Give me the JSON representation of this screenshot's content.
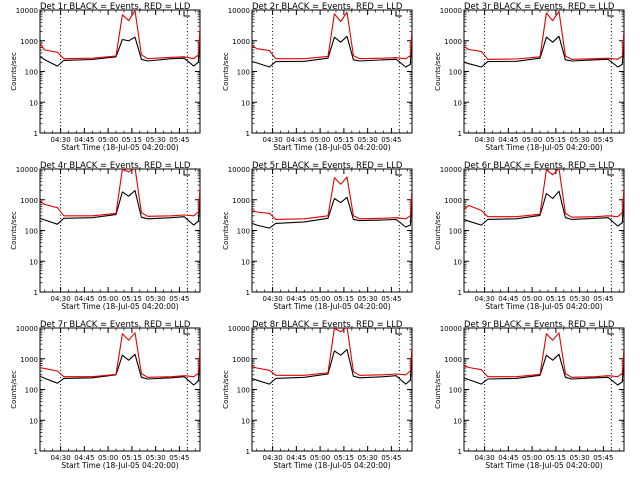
{
  "chart_data": [
    {
      "type": "line",
      "title": "Det 1r BLACK = Events, RED = LLD",
      "xlabel": "Start Time (18-Jul-05 04:20:00)",
      "ylabel": "Counts/sec",
      "ylim": [
        1,
        10000
      ],
      "y_scale": "log",
      "x_ticks": [
        "04:30",
        "04:45",
        "05:00",
        "05:15",
        "05:30",
        "05:45"
      ],
      "y_ticks": [
        "1",
        "10",
        "100",
        "1000",
        "10000"
      ],
      "grid": false,
      "vertical_markers": [
        "04:30",
        "05:50"
      ],
      "x_range": [
        "04:17",
        "05:58"
      ],
      "series": [
        {
          "color": "#000000",
          "x": [
            "04:17",
            "04:20",
            "04:28",
            "04:32",
            "04:50",
            "05:05",
            "05:09",
            "05:13",
            "05:17",
            "05:21",
            "05:25",
            "05:40",
            "05:48",
            "05:54",
            "05:57",
            "05:58"
          ],
          "values": [
            310,
            240,
            150,
            230,
            245,
            300,
            1100,
            1000,
            1300,
            250,
            220,
            260,
            270,
            150,
            200,
            2000
          ]
        },
        {
          "color": "#e00000",
          "x": [
            "04:17",
            "04:20",
            "04:28",
            "04:32",
            "04:50",
            "05:05",
            "05:09",
            "05:13",
            "05:17",
            "05:21",
            "05:25",
            "05:40",
            "05:48",
            "05:54",
            "05:57",
            "05:58"
          ],
          "values": [
            800,
            500,
            420,
            260,
            270,
            320,
            7000,
            4500,
            9500,
            350,
            260,
            290,
            300,
            260,
            350,
            2700
          ]
        }
      ]
    },
    {
      "type": "line",
      "title": "Det 2r BLACK = Events, RED = LLD",
      "xlabel": "Start Time (18-Jul-05 04:20:00)",
      "ylabel": "Counts/sec",
      "ylim": [
        1,
        10000
      ],
      "y_scale": "log",
      "x_ticks": [
        "04:30",
        "04:45",
        "05:00",
        "05:15",
        "05:30",
        "05:45"
      ],
      "y_ticks": [
        "1",
        "10",
        "100",
        "1000",
        "10000"
      ],
      "grid": false,
      "vertical_markers": [
        "04:30",
        "05:50"
      ],
      "x_range": [
        "04:17",
        "05:58"
      ],
      "series": [
        {
          "color": "#000000",
          "x": [
            "04:17",
            "04:20",
            "04:28",
            "04:32",
            "04:50",
            "05:05",
            "05:09",
            "05:13",
            "05:17",
            "05:21",
            "05:25",
            "05:40",
            "05:48",
            "05:54",
            "05:57",
            "05:58"
          ],
          "values": [
            210,
            190,
            140,
            210,
            215,
            270,
            1300,
            900,
            1400,
            240,
            220,
            240,
            250,
            140,
            170,
            1800
          ]
        },
        {
          "color": "#e00000",
          "x": [
            "04:17",
            "04:20",
            "04:28",
            "04:32",
            "04:50",
            "05:05",
            "05:09",
            "05:13",
            "05:17",
            "05:21",
            "05:25",
            "05:40",
            "05:48",
            "05:54",
            "05:57",
            "05:58"
          ],
          "values": [
            700,
            550,
            480,
            260,
            260,
            310,
            7500,
            4200,
            8500,
            330,
            260,
            270,
            280,
            260,
            330,
            2300
          ]
        }
      ]
    },
    {
      "type": "line",
      "title": "Det 3r BLACK = Events, RED = LLD",
      "xlabel": "Start Time (18-Jul-05 04:20:00)",
      "ylabel": "Counts/sec",
      "ylim": [
        1,
        10000
      ],
      "y_scale": "log",
      "x_ticks": [
        "04:30",
        "04:45",
        "05:00",
        "05:15",
        "05:30",
        "05:45"
      ],
      "y_ticks": [
        "1",
        "10",
        "100",
        "1000",
        "10000"
      ],
      "grid": false,
      "vertical_markers": [
        "04:30",
        "05:50"
      ],
      "x_range": [
        "04:17",
        "05:58"
      ],
      "series": [
        {
          "color": "#000000",
          "x": [
            "04:17",
            "04:20",
            "04:28",
            "04:32",
            "04:50",
            "05:05",
            "05:09",
            "05:13",
            "05:17",
            "05:21",
            "05:25",
            "05:40",
            "05:48",
            "05:54",
            "05:57",
            "05:58"
          ],
          "values": [
            200,
            180,
            140,
            210,
            215,
            270,
            1300,
            900,
            1400,
            240,
            220,
            240,
            250,
            140,
            170,
            1900
          ]
        },
        {
          "color": "#e00000",
          "x": [
            "04:17",
            "04:20",
            "04:28",
            "04:32",
            "04:50",
            "05:05",
            "05:09",
            "05:13",
            "05:17",
            "05:21",
            "05:25",
            "05:40",
            "05:48",
            "05:54",
            "05:57",
            "05:58"
          ],
          "values": [
            650,
            520,
            450,
            250,
            255,
            300,
            8000,
            4500,
            9000,
            320,
            250,
            260,
            270,
            250,
            320,
            2200
          ]
        }
      ]
    },
    {
      "type": "line",
      "title": "Det 4r BLACK = Events, RED = LLD",
      "xlabel": "Start Time (18-Jul-05 04:20:00)",
      "ylabel": "Counts/sec",
      "ylim": [
        1,
        10000
      ],
      "y_scale": "log",
      "x_ticks": [
        "04:30",
        "04:45",
        "05:00",
        "05:15",
        "05:30",
        "05:45"
      ],
      "y_ticks": [
        "1",
        "10",
        "100",
        "1000",
        "10000"
      ],
      "grid": false,
      "vertical_markers": [
        "04:30",
        "05:50"
      ],
      "x_range": [
        "04:17",
        "05:58"
      ],
      "series": [
        {
          "color": "#000000",
          "x": [
            "04:17",
            "04:20",
            "04:28",
            "04:32",
            "04:50",
            "05:05",
            "05:09",
            "05:13",
            "05:17",
            "05:21",
            "05:25",
            "05:40",
            "05:48",
            "05:54",
            "05:57",
            "05:58"
          ],
          "values": [
            250,
            220,
            160,
            250,
            260,
            330,
            1800,
            1300,
            2000,
            270,
            240,
            260,
            280,
            150,
            200,
            2000
          ]
        },
        {
          "color": "#e00000",
          "x": [
            "04:17",
            "04:20",
            "04:28",
            "04:32",
            "04:50",
            "05:05",
            "05:09",
            "05:13",
            "05:17",
            "05:21",
            "05:25",
            "05:40",
            "05:48",
            "05:54",
            "05:57",
            "05:58"
          ],
          "values": [
            900,
            700,
            550,
            300,
            300,
            360,
            10000,
            8000,
            11000,
            380,
            290,
            300,
            320,
            300,
            400,
            2500
          ]
        }
      ]
    },
    {
      "type": "line",
      "title": "Det 5r BLACK = Events, RED = LLD",
      "xlabel": "Start Time (18-Jul-05 04:20:00)",
      "ylabel": "Counts/sec",
      "ylim": [
        1,
        10000
      ],
      "y_scale": "log",
      "x_ticks": [
        "04:30",
        "04:45",
        "05:00",
        "05:15",
        "05:30",
        "05:45"
      ],
      "y_ticks": [
        "1",
        "10",
        "100",
        "1000",
        "10000"
      ],
      "grid": false,
      "vertical_markers": [
        "04:30",
        "05:50"
      ],
      "x_range": [
        "04:17",
        "05:58"
      ],
      "series": [
        {
          "color": "#000000",
          "x": [
            "04:17",
            "04:20",
            "04:28",
            "04:32",
            "04:50",
            "05:05",
            "05:09",
            "05:13",
            "05:17",
            "05:21",
            "05:25",
            "05:40",
            "05:48",
            "05:54",
            "05:57",
            "05:58"
          ],
          "values": [
            170,
            150,
            120,
            170,
            190,
            250,
            1100,
            800,
            1200,
            230,
            210,
            220,
            230,
            130,
            150,
            1800
          ]
        },
        {
          "color": "#e00000",
          "x": [
            "04:17",
            "04:20",
            "04:28",
            "04:32",
            "04:50",
            "05:05",
            "05:09",
            "05:13",
            "05:17",
            "05:21",
            "05:25",
            "05:40",
            "05:48",
            "05:54",
            "05:57",
            "05:58"
          ],
          "values": [
            450,
            400,
            360,
            230,
            240,
            300,
            5200,
            3200,
            5500,
            300,
            240,
            250,
            260,
            240,
            300,
            2000
          ]
        }
      ]
    },
    {
      "type": "line",
      "title": "Det 6r BLACK = Events, RED = LLD",
      "xlabel": "Start Time (18-Jul-05 04:20:00)",
      "ylabel": "Counts/sec",
      "ylim": [
        1,
        10000
      ],
      "y_scale": "log",
      "x_ticks": [
        "04:30",
        "04:45",
        "05:00",
        "05:15",
        "05:30",
        "05:45"
      ],
      "y_ticks": [
        "1",
        "10",
        "100",
        "1000",
        "10000"
      ],
      "grid": false,
      "vertical_markers": [
        "04:30",
        "05:50"
      ],
      "x_range": [
        "04:17",
        "05:58"
      ],
      "series": [
        {
          "color": "#000000",
          "x": [
            "04:17",
            "04:20",
            "04:28",
            "04:32",
            "04:50",
            "05:05",
            "05:09",
            "05:13",
            "05:17",
            "05:21",
            "05:25",
            "05:40",
            "05:48",
            "05:54",
            "05:57",
            "05:58"
          ],
          "values": [
            230,
            200,
            150,
            230,
            240,
            310,
            1600,
            1100,
            1900,
            260,
            230,
            250,
            260,
            140,
            180,
            2000
          ]
        },
        {
          "color": "#e00000",
          "x": [
            "04:17",
            "04:20",
            "04:28",
            "04:32",
            "04:50",
            "05:05",
            "05:09",
            "05:13",
            "05:17",
            "05:21",
            "05:25",
            "05:40",
            "05:48",
            "05:54",
            "05:57",
            "05:58"
          ],
          "values": [
            500,
            650,
            450,
            280,
            280,
            340,
            9500,
            6500,
            10500,
            360,
            270,
            280,
            300,
            280,
            380,
            2400
          ]
        }
      ]
    },
    {
      "type": "line",
      "title": "Det 7r BLACK = Events, RED = LLD",
      "xlabel": "Start Time (18-Jul-05 04:20:00)",
      "ylabel": "Counts/sec",
      "ylim": [
        1,
        10000
      ],
      "y_scale": "log",
      "x_ticks": [
        "04:30",
        "04:45",
        "05:00",
        "05:15",
        "05:30",
        "05:45"
      ],
      "y_ticks": [
        "1",
        "10",
        "100",
        "1000",
        "10000"
      ],
      "grid": false,
      "vertical_markers": [
        "04:30",
        "05:50"
      ],
      "x_range": [
        "04:17",
        "05:58"
      ],
      "series": [
        {
          "color": "#000000",
          "x": [
            "04:17",
            "04:20",
            "04:28",
            "04:32",
            "04:50",
            "05:05",
            "05:09",
            "05:13",
            "05:17",
            "05:21",
            "05:25",
            "05:40",
            "05:48",
            "05:54",
            "05:57",
            "05:58"
          ],
          "values": [
            270,
            230,
            160,
            230,
            240,
            300,
            1300,
            900,
            1400,
            250,
            220,
            240,
            260,
            140,
            190,
            2000
          ]
        },
        {
          "color": "#e00000",
          "x": [
            "04:17",
            "04:20",
            "04:28",
            "04:32",
            "04:50",
            "05:05",
            "05:09",
            "05:13",
            "05:17",
            "05:21",
            "05:25",
            "05:40",
            "05:48",
            "05:54",
            "05:57",
            "05:58"
          ],
          "values": [
            520,
            480,
            400,
            260,
            260,
            310,
            6500,
            4000,
            7000,
            330,
            250,
            260,
            280,
            260,
            340,
            2300
          ]
        }
      ]
    },
    {
      "type": "line",
      "title": "Det 8r BLACK = Events, RED = LLD",
      "xlabel": "Start Time (18-Jul-05 04:20:00)",
      "ylabel": "Counts/sec",
      "ylim": [
        1,
        10000
      ],
      "y_scale": "log",
      "x_ticks": [
        "04:30",
        "04:45",
        "05:00",
        "05:15",
        "05:30",
        "05:45"
      ],
      "y_ticks": [
        "1",
        "10",
        "100",
        "1000",
        "10000"
      ],
      "grid": false,
      "vertical_markers": [
        "04:30",
        "05:50"
      ],
      "x_range": [
        "04:17",
        "05:58"
      ],
      "series": [
        {
          "color": "#000000",
          "x": [
            "04:17",
            "04:20",
            "04:28",
            "04:32",
            "04:50",
            "05:05",
            "05:09",
            "05:13",
            "05:17",
            "05:21",
            "05:25",
            "05:40",
            "05:48",
            "05:54",
            "05:57",
            "05:58"
          ],
          "values": [
            230,
            200,
            150,
            230,
            250,
            320,
            1800,
            1300,
            2000,
            270,
            240,
            260,
            280,
            150,
            200,
            2000
          ]
        },
        {
          "color": "#e00000",
          "x": [
            "04:17",
            "04:20",
            "04:28",
            "04:32",
            "04:50",
            "05:05",
            "05:09",
            "05:13",
            "05:17",
            "05:21",
            "05:25",
            "05:40",
            "05:48",
            "05:54",
            "05:57",
            "05:58"
          ],
          "values": [
            560,
            500,
            420,
            290,
            290,
            350,
            10000,
            7500,
            11000,
            380,
            290,
            300,
            320,
            300,
            400,
            2400
          ]
        }
      ]
    },
    {
      "type": "line",
      "title": "Det 9r BLACK = Events, RED = LLD",
      "xlabel": "Start Time (18-Jul-05 04:20:00)",
      "ylabel": "Counts/sec",
      "ylim": [
        1,
        10000
      ],
      "y_scale": "log",
      "x_ticks": [
        "04:30",
        "04:45",
        "05:00",
        "05:15",
        "05:30",
        "05:45"
      ],
      "y_ticks": [
        "1",
        "10",
        "100",
        "1000",
        "10000"
      ],
      "grid": false,
      "vertical_markers": [
        "04:30",
        "05:50"
      ],
      "x_range": [
        "04:17",
        "05:58"
      ],
      "series": [
        {
          "color": "#000000",
          "x": [
            "04:17",
            "04:20",
            "04:28",
            "04:32",
            "04:50",
            "05:05",
            "05:09",
            "05:13",
            "05:17",
            "05:21",
            "05:25",
            "05:40",
            "05:48",
            "05:54",
            "05:57",
            "05:58"
          ],
          "values": [
            240,
            210,
            150,
            220,
            230,
            290,
            1300,
            900,
            1400,
            250,
            220,
            240,
            250,
            140,
            180,
            1900
          ]
        },
        {
          "color": "#e00000",
          "x": [
            "04:17",
            "04:20",
            "04:28",
            "04:32",
            "04:50",
            "05:05",
            "05:09",
            "05:13",
            "05:17",
            "05:21",
            "05:25",
            "05:40",
            "05:48",
            "05:54",
            "05:57",
            "05:58"
          ],
          "values": [
            600,
            520,
            440,
            260,
            260,
            310,
            6500,
            4000,
            7000,
            330,
            250,
            260,
            280,
            260,
            340,
            2300
          ]
        }
      ]
    }
  ]
}
